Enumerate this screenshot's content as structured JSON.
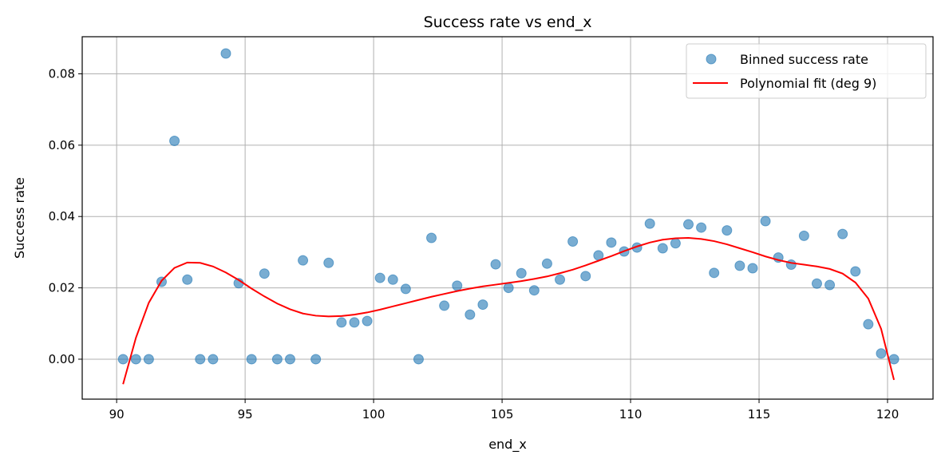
{
  "chart_data": {
    "type": "scatter",
    "title": "Success rate vs end_x",
    "xlabel": "end_x",
    "ylabel": "Success rate",
    "xlim": [
      88.66,
      121.77
    ],
    "ylim": [
      -0.0112,
      0.0904
    ],
    "xticks": [
      90,
      95,
      100,
      105,
      110,
      115,
      120
    ],
    "xtick_labels": [
      "90",
      "95",
      "100",
      "105",
      "110",
      "115",
      "120"
    ],
    "yticks": [
      0,
      0.02,
      0.04,
      0.06,
      0.08
    ],
    "ytick_labels": [
      "0.00",
      "0.02",
      "0.04",
      "0.06",
      "0.08"
    ],
    "grid": true,
    "legend_position": "top-right",
    "x": [
      90.25,
      90.75,
      91.25,
      91.75,
      92.25,
      92.75,
      93.25,
      93.75,
      94.25,
      94.75,
      95.25,
      95.75,
      96.25,
      96.75,
      97.25,
      97.75,
      98.25,
      98.75,
      99.25,
      99.75,
      100.25,
      100.75,
      101.25,
      101.75,
      102.25,
      102.75,
      103.25,
      103.75,
      104.25,
      104.75,
      105.25,
      105.75,
      106.25,
      106.75,
      107.25,
      107.75,
      108.25,
      108.75,
      109.25,
      109.75,
      110.25,
      110.75,
      111.25,
      111.75,
      112.25,
      112.75,
      113.25,
      113.75,
      114.25,
      114.75,
      115.25,
      115.75,
      116.25,
      116.75,
      117.25,
      117.75,
      118.25,
      118.75,
      119.25,
      119.75,
      120.25
    ],
    "series": [
      {
        "name": "Binned success rate",
        "kind": "scatter",
        "color": "#1f77b4",
        "values": [
          0,
          0,
          0,
          0.0217,
          0.0612,
          0.0223,
          0,
          0,
          0.0857,
          0.0213,
          0,
          0.024,
          0,
          0,
          0.0277,
          0,
          0.027,
          0.0103,
          0.0103,
          0.0107,
          0.0228,
          0.0223,
          0.0197,
          0,
          0.034,
          0.015,
          0.0206,
          0.0125,
          0.0153,
          0.0266,
          0.02,
          0.0241,
          0.0193,
          0.0268,
          0.0223,
          0.033,
          0.0233,
          0.0291,
          0.0327,
          0.0302,
          0.0313,
          0.038,
          0.0311,
          0.0325,
          0.0378,
          0.0369,
          0.0242,
          0.0361,
          0.0262,
          0.0255,
          0.0387,
          0.0285,
          0.0265,
          0.0346,
          0.0212,
          0.0208,
          0.0351,
          0.0246,
          0.0098,
          0.0016,
          0
        ]
      },
      {
        "name": "Polynomial fit (deg 9)",
        "kind": "line",
        "color": "#ff0000",
        "values": [
          -0.007,
          0.006,
          0.0158,
          0.022,
          0.0256,
          0.0271,
          0.027,
          0.026,
          0.0243,
          0.0222,
          0.0198,
          0.0176,
          0.0156,
          0.014,
          0.0128,
          0.0122,
          0.012,
          0.0121,
          0.0125,
          0.0131,
          0.0139,
          0.0148,
          0.0157,
          0.0166,
          0.0175,
          0.0183,
          0.0191,
          0.0198,
          0.0204,
          0.0209,
          0.0214,
          0.0219,
          0.0225,
          0.0232,
          0.0241,
          0.0251,
          0.0263,
          0.0276,
          0.0289,
          0.0303,
          0.0316,
          0.0327,
          0.0335,
          0.0339,
          0.034,
          0.0337,
          0.0331,
          0.0322,
          0.0311,
          0.03,
          0.0288,
          0.0278,
          0.027,
          0.0265,
          0.026,
          0.0253,
          0.024,
          0.0215,
          0.017,
          0.0085,
          -0.0058
        ]
      }
    ]
  }
}
